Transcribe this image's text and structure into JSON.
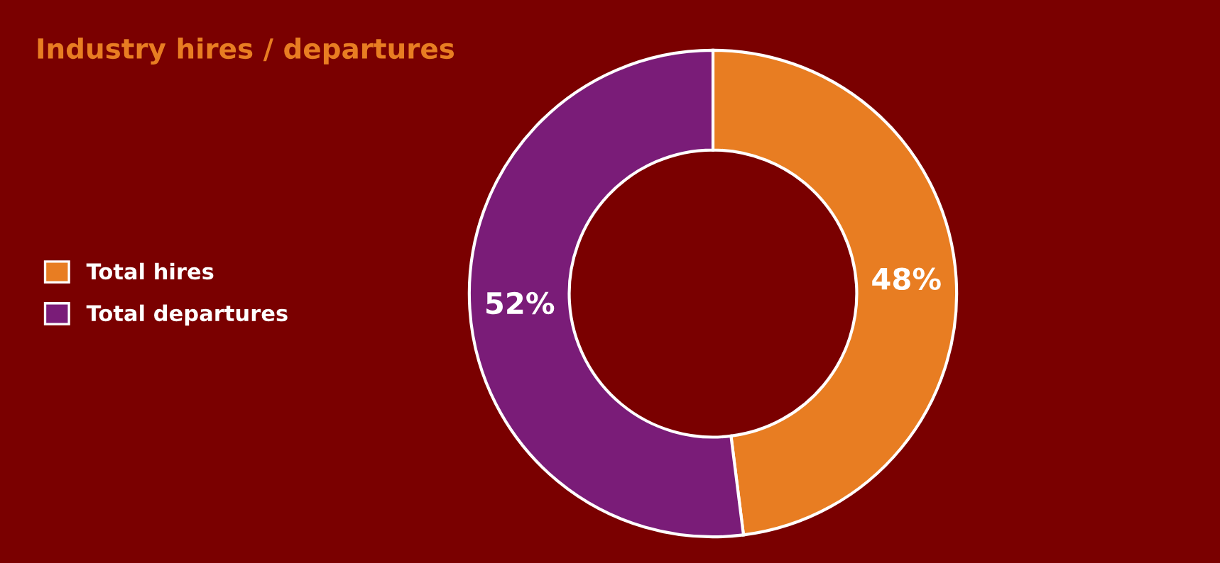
{
  "chart_data": {
    "type": "donut",
    "title": "Industry hires / departures",
    "categories": [
      "Total hires",
      "Total departures"
    ],
    "values": [
      48,
      52
    ],
    "colors": [
      "#e87d22",
      "#7a1c78"
    ],
    "value_labels": [
      "48%",
      "52%"
    ],
    "legend": "left"
  }
}
